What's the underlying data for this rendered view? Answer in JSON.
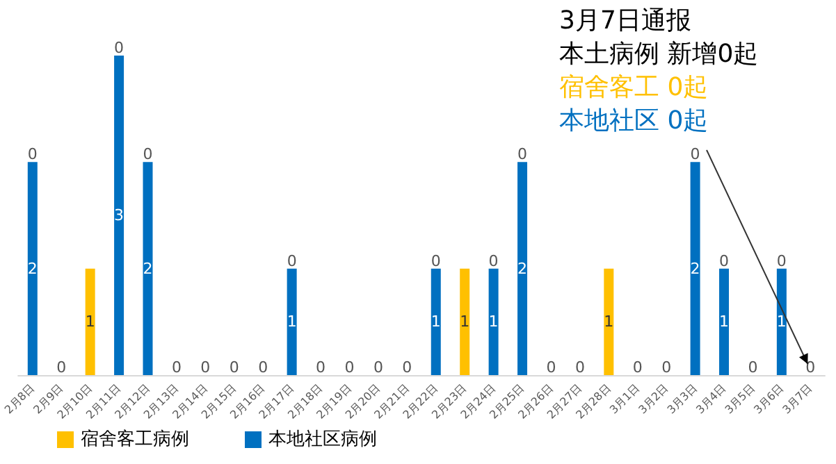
{
  "chart_data": {
    "type": "bar",
    "stacked": true,
    "data_labels": true,
    "grid": false,
    "legend": "bottom left",
    "tick_labels": "x",
    "categories": [
      "2月8日",
      "2月9日",
      "2月10日",
      "2月11日",
      "2月12日",
      "2月13日",
      "2月14日",
      "2月15日",
      "2月16日",
      "2月17日",
      "2月18日",
      "2月19日",
      "2月20日",
      "2月21日",
      "2月22日",
      "2月23日",
      "2月24日",
      "2月25日",
      "2月26日",
      "2月27日",
      "2月28日",
      "3月1日",
      "3月2日",
      "3月3日",
      "3月4日",
      "3月5日",
      "3月6日",
      "3月7日"
    ],
    "series": [
      {
        "name": "本地社区病例",
        "color": "#0070c0",
        "values": [
          2,
          0,
          0,
          3,
          2,
          0,
          0,
          0,
          0,
          1,
          0,
          0,
          0,
          0,
          1,
          0,
          1,
          2,
          0,
          0,
          0,
          0,
          0,
          2,
          1,
          0,
          1,
          0
        ],
        "value_labels": [
          "2",
          "0",
          null,
          "3",
          "2",
          "0",
          "0",
          "0",
          "0",
          "1",
          "0",
          "0",
          "0",
          "0",
          "1",
          null,
          "1",
          "2",
          "0",
          "0",
          null,
          "0",
          "0",
          "2",
          "1",
          "0",
          "1",
          "0"
        ]
      },
      {
        "name": "宿舍客工病例",
        "color": "#ffc000",
        "values": [
          0,
          0,
          1,
          0,
          0,
          0,
          0,
          0,
          0,
          0,
          0,
          0,
          0,
          0,
          0,
          1,
          0,
          0,
          0,
          0,
          1,
          0,
          0,
          0,
          0,
          0,
          0,
          0
        ],
        "value_labels": [
          "0",
          null,
          "1",
          "0",
          "0",
          null,
          null,
          null,
          null,
          "0",
          null,
          null,
          null,
          null,
          "0",
          "1",
          "0",
          "0",
          null,
          null,
          "1",
          null,
          null,
          "0",
          "0",
          null,
          "0",
          null
        ]
      }
    ],
    "annotations": [
      "3月7日通报",
      "本土病例 新增0起",
      "宿舍客工 0起",
      "本地社区 0起"
    ]
  }
}
